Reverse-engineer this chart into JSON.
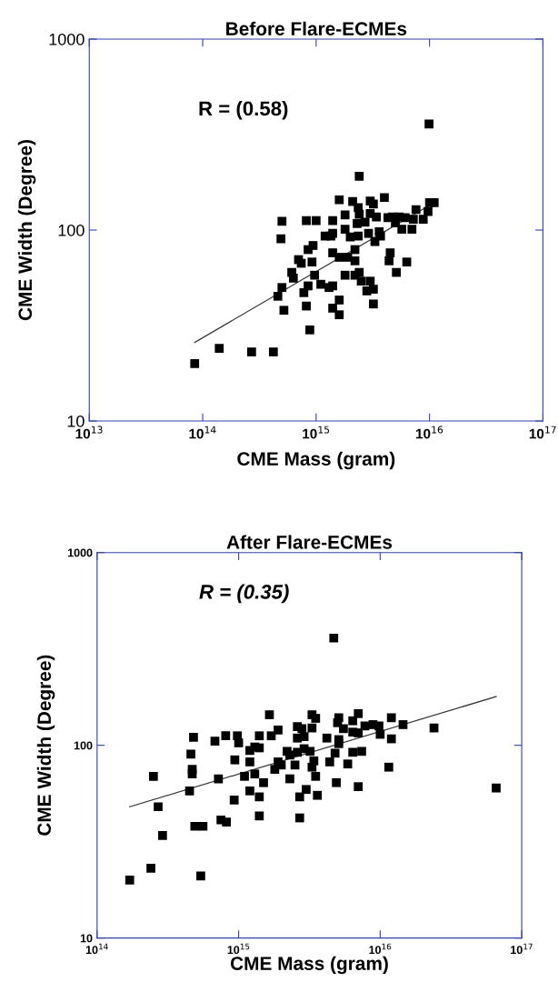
{
  "chart_data": [
    {
      "type": "scatter",
      "title": "Before Flare-ECMEs",
      "xlabel": "CME Mass (gram)",
      "ylabel": "CME Width (Degree)",
      "log": "xy",
      "marker": "square",
      "grid": false,
      "xlim": [
        10000000000000.0,
        1e+17
      ],
      "xticks": [
        {
          "value": 10000000000000.0,
          "label": "10$^{13}$"
        },
        {
          "value": 100000000000000.0,
          "label": "10$^{14}$"
        },
        {
          "value": 1000000000000000.0,
          "label": "10$^{15}$"
        },
        {
          "value": 1e+16,
          "label": "10$^{16}$"
        },
        {
          "value": 1e+17,
          "label": "10$^{17}$"
        }
      ],
      "ylim": [
        10,
        1000
      ],
      "yticks": [
        10,
        100,
        1000
      ],
      "annotations": [
        "R = (0.58)"
      ],
      "series": [
        {
          "color": "#000000",
          "x": [
            85000000000000.0,
            140000000000000.0,
            270000000000000.0,
            420000000000000.0,
            9900000000000000.0,
            2400000000000000.0,
            1600000000000000.0,
            2100000000000000.0,
            3000000000000000.0,
            4000000000000000.0,
            3200000000000000.0,
            500000000000000.0,
            490000000000000.0,
            820000000000000.0,
            1000000000000000.0,
            1400000000000000.0,
            1800000000000000.0,
            2350000000000000.0,
            2400000000000000.0,
            3000000000000000.0,
            3400000000000000.0,
            4300000000000000.0,
            4700000000000000.0,
            5400000000000000.0,
            6100000000000000.0,
            7600000000000000.0,
            9700000000000000.0,
            1e+16,
            1.1e+16,
            8800000000000000.0,
            7200000000000000.0,
            5700000000000000.0,
            7000000000000000.0,
            5000000000000000.0,
            2700000000000000.0,
            2300000000000000.0,
            1800000000000000.0,
            2000000000000000.0,
            2350000000000000.0,
            2900000000000000.0,
            3600000000000000.0,
            3700000000000000.0,
            3300000000000000.0,
            1200000000000000.0,
            1350000000000000.0,
            1400000000000000.0,
            940000000000000.0,
            850000000000000.0,
            700000000000000.0,
            740000000000000.0,
            920000000000000.0,
            1400000000000000.0,
            1600000000000000.0,
            1900000000000000.0,
            2200000000000000.0,
            2200000000000000.0,
            4500000000000000.0,
            4400000000000000.0,
            6300000000000000.0,
            5100000000000000.0,
            610000000000000.0,
            630000000000000.0,
            970000000000000.0,
            1100000000000000.0,
            850000000000000.0,
            780000000000000.0,
            1300000000000000.0,
            1400000000000000.0,
            1800000000000000.0,
            2200000000000000.0,
            2400000000000000.0,
            2500000000000000.0,
            3000000000000000.0,
            3200000000000000.0,
            2800000000000000.0,
            460000000000000.0,
            500000000000000.0,
            520000000000000.0,
            820000000000000.0,
            1400000000000000.0,
            1600000000000000.0,
            1600000000000000.0,
            3200000000000000.0,
            880000000000000.0
          ],
          "values": [
            20,
            24,
            23,
            23,
            359,
            191,
            144,
            141,
            142,
            148,
            137,
            111,
            90,
            112,
            112,
            112,
            120,
            131,
            121,
            122,
            117,
            116,
            117,
            117,
            116,
            128,
            125,
            139,
            139,
            114,
            114,
            101,
            101,
            109,
            110,
            108,
            101,
            92,
            93,
            96,
            98,
            93,
            87,
            93,
            93,
            96,
            83,
            79,
            70,
            67,
            68,
            76,
            72,
            72,
            79,
            69,
            76,
            69,
            68,
            60,
            60,
            56,
            58,
            52,
            51,
            47,
            50,
            51,
            58,
            58,
            60,
            54,
            54,
            49,
            48,
            45,
            50,
            38,
            40,
            39,
            43,
            36,
            41,
            30
          ]
        },
        {
          "type": "line",
          "color": "#333333",
          "marker": "none",
          "x": [
            85000000000000.0,
            1.05e+16
          ],
          "values": [
            25.8,
            137
          ]
        }
      ]
    },
    {
      "type": "scatter",
      "title": "After Flare-ECMEs",
      "xlabel": "CME Mass (gram)",
      "ylabel": "CME Width (Degree)",
      "log": "xy",
      "marker": "square",
      "grid": false,
      "xlim": [
        100000000000000.0,
        1e+17
      ],
      "xticks": [
        {
          "value": 100000000000000.0,
          "label": "10$^{14}$"
        },
        {
          "value": 1000000000000000.0,
          "label": "10$^{15}$"
        },
        {
          "value": 1e+16,
          "label": "10$^{16}$"
        },
        {
          "value": 1e+17,
          "label": "10$^{17}$"
        }
      ],
      "ylim": [
        10,
        1000
      ],
      "yticks": [
        10,
        100,
        1000
      ],
      "annotations": [
        "R = (0.35)"
      ],
      "series": [
        {
          "color": "#000000",
          "x": [
            1650000000000000.0,
            480000000000000.0,
            680000000000000.0,
            810000000000000.0,
            980000000000000.0,
            1000000000000000.0,
            1400000000000000.0,
            1700000000000000.0,
            1900000000000000.0,
            460000000000000.0,
            940000000000000.0,
            1200000000000000.0,
            1300000000000000.0,
            1400000000000000.0,
            1200000000000000.0,
            1900000000000000.0,
            1800000000000000.0,
            2000000000000000.0,
            2200000000000000.0,
            2300000000000000.0,
            2500000000000000.0,
            250000000000000.0,
            470000000000000.0,
            470000000000000.0,
            720000000000000.0,
            1100000000000000.0,
            1300000000000000.0,
            1500000000000000.0,
            2300000000000000.0,
            450000000000000.0,
            1200000000000000.0,
            270000000000000.0,
            930000000000000.0,
            1400000000000000.0,
            2700000000000000.0,
            3000000000000000.0,
            490000000000000.0,
            560000000000000.0,
            750000000000000.0,
            820000000000000.0,
            1400000000000000.0,
            2700000000000000.0,
            290000000000000.0,
            240000000000000.0,
            170000000000000.0,
            540000000000000.0,
            4700000000000000.0,
            3300000000000000.0,
            3500000000000000.0,
            2600000000000000.0,
            2800000000000000.0,
            3300000000000000.0,
            2600000000000000.0,
            2900000000000000.0,
            4200000000000000.0,
            5100000000000000.0,
            5000000000000000.0,
            6400000000000000.0,
            7000000000000000.0,
            1.2e+16,
            5500000000000000.0,
            6400000000000000.0,
            7000000000000000.0,
            7800000000000000.0,
            8900000000000000.0,
            9800000000000000.0,
            1e+16,
            1.2e+16,
            1.45e+16,
            2.4e+16,
            5100000000000000.0,
            5100000000000000.0,
            2900000000000000.0,
            3200000000000000.0,
            2600000000000000.0,
            4800000000000000.0,
            6400000000000000.0,
            7400000000000000.0,
            3400000000000000.0,
            3300000000000000.0,
            4400000000000000.0,
            5900000000000000.0,
            3500000000000000.0,
            1.15e+16,
            4900000000000000.0,
            7000000000000000.0,
            3600000000000000.0,
            6.6e+16
          ],
          "values": [
            144,
            110,
            105,
            112,
            112,
            103,
            112,
            112,
            120,
            90,
            84,
            94,
            98,
            97,
            82,
            82,
            75,
            79,
            93,
            89,
            79,
            69,
            75,
            71,
            67,
            69,
            71,
            64,
            67,
            58,
            58,
            48,
            52,
            54,
            54,
            59,
            38,
            38,
            41,
            40,
            43,
            42,
            34,
            23,
            20,
            21,
            360,
            144,
            138,
            125,
            122,
            123,
            109,
            111,
            109,
            139,
            131,
            134,
            146,
            139,
            122,
            117,
            116,
            126,
            128,
            126,
            114,
            108,
            128,
            123,
            107,
            102,
            96,
            93,
            92,
            91,
            92,
            93,
            83,
            77,
            82,
            80,
            69,
            77,
            64,
            61,
            55,
            60
          ]
        },
        {
          "type": "line",
          "color": "#333333",
          "marker": "none",
          "x": [
            170000000000000.0,
            6.6e+16
          ],
          "values": [
            48,
            179
          ]
        }
      ]
    }
  ]
}
